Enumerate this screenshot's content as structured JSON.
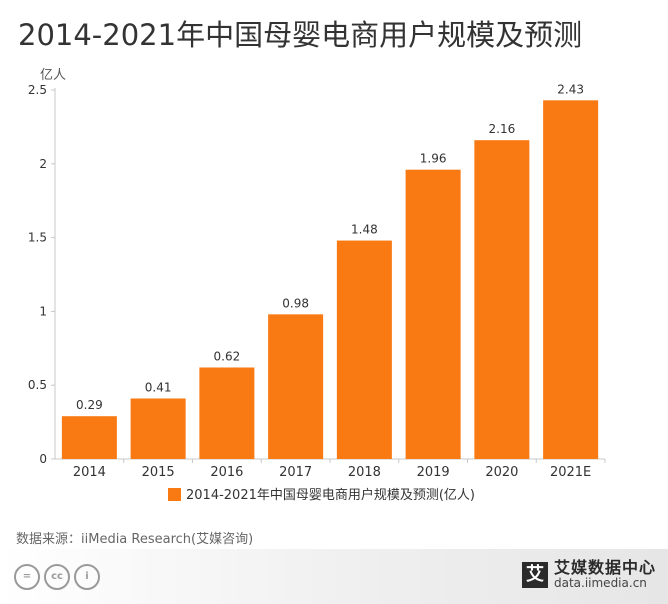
{
  "title": "2014-2021年中国母婴电商用户规模及预测",
  "source": "数据来源：iiMedia Research(艾媒咨询)",
  "brand": {
    "logo_char": "艾",
    "name": "艾媒数据中心",
    "url": "data.iimedia.cn"
  },
  "license_icons": [
    "equals-icon",
    "cc-icon",
    "person-icon"
  ],
  "license_glyphs": [
    "=",
    "cc",
    "i"
  ],
  "chart_data": {
    "type": "bar",
    "categories": [
      "2014",
      "2015",
      "2016",
      "2017",
      "2018",
      "2019",
      "2020",
      "2021E"
    ],
    "series": [
      {
        "name": "2014-2021年中国母婴电商用户规模及预测(亿人)",
        "values": [
          0.29,
          0.41,
          0.62,
          0.98,
          1.48,
          1.96,
          2.16,
          2.43
        ]
      }
    ],
    "unit_label": "亿人",
    "ylim": [
      0,
      2.5
    ],
    "yticks": [
      0,
      0.5,
      1,
      1.5,
      2,
      2.5
    ],
    "ytick_labels": [
      "0",
      "0.5",
      "1",
      "1.5",
      "2",
      "2.5"
    ],
    "bar_color": "#F97A12",
    "grid": false,
    "legend_position": "bottom"
  }
}
